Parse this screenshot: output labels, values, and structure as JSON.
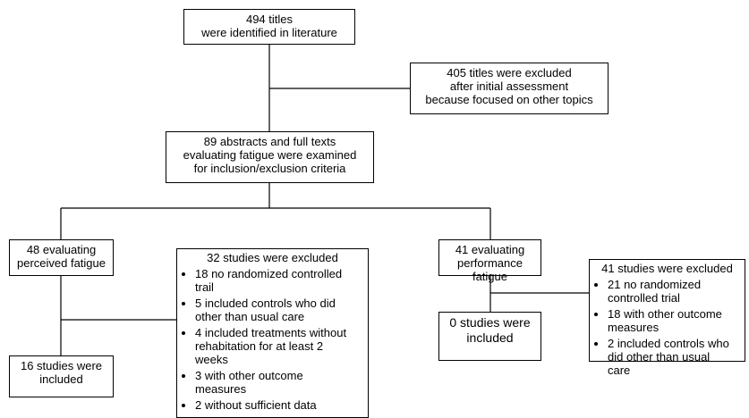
{
  "nodes": [
    {
      "lines": [
        "494 titles",
        "were identified in literature"
      ]
    },
    {
      "lines": [
        "405 titles were excluded",
        "after initial assessment",
        "because focused on other topics"
      ]
    },
    {
      "lines": [
        "89 abstracts and full texts",
        "evaluating fatigue were examined",
        "for inclusion/exclusion criteria"
      ]
    },
    {
      "lines": [
        "48 evaluating",
        "perceived fatigue"
      ]
    },
    {
      "title": "32 studies were excluded",
      "bullets": [
        [
          "18 no randomized controlled",
          "trail"
        ],
        [
          "5 included controls who did",
          "other than usual care"
        ],
        [
          "4 included treatments without",
          "rehabitation for at least 2",
          "weeks"
        ],
        [
          "3 with other outcome",
          "measures"
        ],
        [
          "2 without sufficient data"
        ]
      ]
    },
    {
      "lines": [
        "16 studies were",
        "included"
      ]
    },
    {
      "lines": [
        "41 evaluating",
        "performance fatigue"
      ]
    },
    {
      "title": "41 studies were excluded",
      "bullets": [
        [
          "21 no randomized",
          "controlled trial"
        ],
        [
          "18 with other outcome",
          "measures"
        ],
        [
          "2 included controls who",
          "did other than usual",
          "care"
        ]
      ]
    },
    {
      "lines": [
        "0 studies were",
        "included"
      ]
    }
  ]
}
